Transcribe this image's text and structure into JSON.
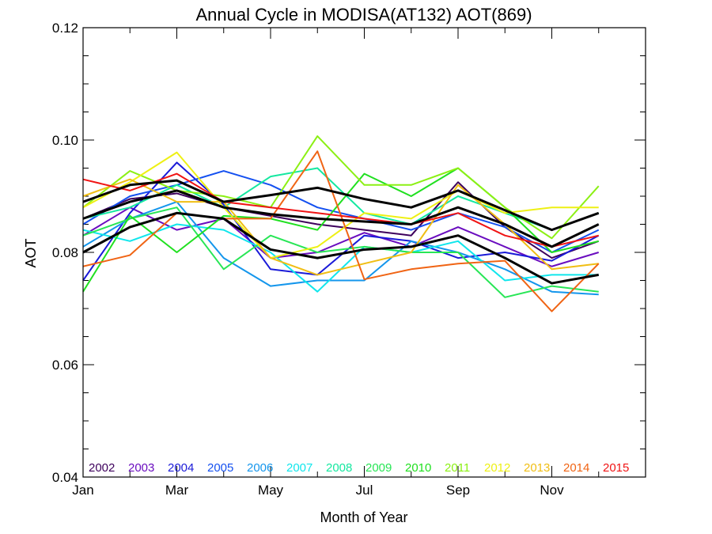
{
  "chart_data": {
    "type": "line",
    "title": "Annual Cycle in MODISA(AT132) AOT(869)",
    "xlabel": "Month of Year",
    "ylabel": "AOT",
    "xlim": [
      1,
      12
    ],
    "ylim": [
      0.04,
      0.12
    ],
    "x": [
      1,
      2,
      3,
      4,
      5,
      6,
      7,
      8,
      9,
      10,
      11,
      12
    ],
    "x_ticks": [
      {
        "value": 1,
        "label": "Jan"
      },
      {
        "value": 3,
        "label": "Mar"
      },
      {
        "value": 5,
        "label": "May"
      },
      {
        "value": 7,
        "label": "Jul"
      },
      {
        "value": 9,
        "label": "Sep"
      },
      {
        "value": 11,
        "label": "Nov"
      }
    ],
    "y_ticks": [
      {
        "value": 0.04,
        "label": "0.04"
      },
      {
        "value": 0.06,
        "label": "0.06"
      },
      {
        "value": 0.08,
        "label": "0.08"
      },
      {
        "value": 0.1,
        "label": "0.10"
      },
      {
        "value": 0.12,
        "label": "0.12"
      }
    ],
    "series": [
      {
        "name": "2002",
        "color": "#3d005c",
        "values": [
          0.086,
          0.0895,
          0.0905,
          0.088,
          0.0865,
          0.085,
          0.084,
          0.083,
          0.0925,
          0.0845,
          0.079,
          0.082
        ]
      },
      {
        "name": "2003",
        "color": "#6a0dbf",
        "values": [
          0.083,
          0.088,
          0.084,
          0.086,
          0.079,
          0.08,
          0.0835,
          0.081,
          0.0845,
          0.081,
          0.0775,
          0.08
        ]
      },
      {
        "name": "2004",
        "color": "#1a1ad8",
        "values": [
          0.075,
          0.087,
          0.096,
          0.0885,
          0.077,
          0.076,
          0.083,
          0.082,
          0.079,
          0.08,
          0.0785,
          0.083
        ]
      },
      {
        "name": "2005",
        "color": "#1450f0",
        "values": [
          0.085,
          0.09,
          0.092,
          0.0945,
          0.092,
          0.088,
          0.086,
          0.084,
          0.087,
          0.0845,
          0.08,
          0.084
        ]
      },
      {
        "name": "2006",
        "color": "#1496ec",
        "values": [
          0.081,
          0.086,
          0.089,
          0.079,
          0.074,
          0.075,
          0.075,
          0.082,
          0.08,
          0.077,
          0.073,
          0.0725
        ]
      },
      {
        "name": "2007",
        "color": "#10e6ec",
        "values": [
          0.084,
          0.082,
          0.085,
          0.084,
          0.08,
          0.073,
          0.081,
          0.08,
          0.082,
          0.075,
          0.076,
          0.076
        ]
      },
      {
        "name": "2008",
        "color": "#14e8a0",
        "values": [
          0.086,
          0.088,
          0.092,
          0.088,
          0.0935,
          0.095,
          0.087,
          0.085,
          0.09,
          0.087,
          0.084,
          0.087
        ]
      },
      {
        "name": "2009",
        "color": "#28e656",
        "values": [
          0.083,
          0.086,
          0.088,
          0.077,
          0.083,
          0.08,
          0.081,
          0.08,
          0.08,
          0.072,
          0.074,
          0.073
        ]
      },
      {
        "name": "2010",
        "color": "#20e020",
        "values": [
          0.073,
          0.0865,
          0.08,
          0.0865,
          0.086,
          0.084,
          0.094,
          0.09,
          0.095,
          0.088,
          0.08,
          0.082
        ]
      },
      {
        "name": "2011",
        "color": "#8cf014",
        "values": [
          0.088,
          0.0945,
          0.091,
          0.09,
          0.088,
          0.1007,
          0.092,
          0.092,
          0.095,
          0.088,
          0.0825,
          0.0918
        ]
      },
      {
        "name": "2012",
        "color": "#eef014",
        "values": [
          0.088,
          0.0925,
          0.0978,
          0.088,
          0.079,
          0.081,
          0.087,
          0.086,
          0.091,
          0.087,
          0.088,
          0.088
        ]
      },
      {
        "name": "2013",
        "color": "#f0be14",
        "values": [
          0.09,
          0.093,
          0.089,
          0.089,
          0.079,
          0.076,
          0.078,
          0.08,
          0.092,
          0.085,
          0.077,
          0.078
        ]
      },
      {
        "name": "2014",
        "color": "#f06414",
        "values": [
          0.0775,
          0.0795,
          0.087,
          0.086,
          0.086,
          0.098,
          0.0752,
          0.077,
          0.078,
          0.0785,
          0.0695,
          0.078
        ]
      },
      {
        "name": "2015",
        "color": "#f01414",
        "values": [
          0.093,
          0.091,
          0.094,
          0.089,
          0.088,
          0.087,
          0.086,
          0.085,
          0.087,
          0.083,
          0.081,
          0.083
        ]
      }
    ],
    "summary_series": [
      {
        "color": "#000000",
        "values": [
          0.089,
          0.092,
          0.0928,
          0.089,
          0.0902,
          0.0915,
          0.0895,
          0.088,
          0.091,
          0.0875,
          0.084,
          0.087
        ]
      },
      {
        "color": "#000000",
        "values": [
          0.086,
          0.089,
          0.091,
          0.088,
          0.0868,
          0.086,
          0.0855,
          0.085,
          0.088,
          0.085,
          0.081,
          0.085
        ]
      },
      {
        "color": "#000000",
        "values": [
          0.08,
          0.0845,
          0.087,
          0.086,
          0.0805,
          0.079,
          0.0805,
          0.081,
          0.083,
          0.079,
          0.0745,
          0.076
        ]
      }
    ]
  }
}
